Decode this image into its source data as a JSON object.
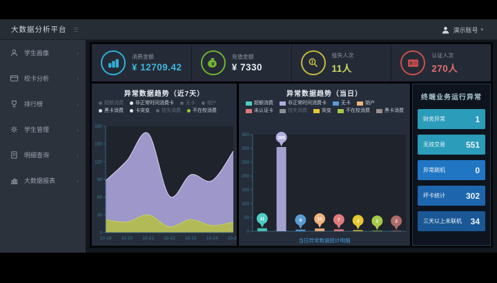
{
  "header": {
    "app_title": "大数据分析平台",
    "menu_icon": "☰",
    "user_name": "演示账号",
    "caret": "▾"
  },
  "sidebar": {
    "chevron": "›",
    "items": [
      {
        "label": "学生画像",
        "icon": "person"
      },
      {
        "label": "校卡分析",
        "icon": "card"
      },
      {
        "label": "排行榜",
        "icon": "trophy"
      },
      {
        "label": "学生管理",
        "icon": "gear"
      },
      {
        "label": "明细查询",
        "icon": "doc"
      },
      {
        "label": "大数据报表",
        "icon": "chart"
      }
    ]
  },
  "kpis": [
    {
      "label": "消费金额",
      "value": "¥ 12709.42",
      "value_color": "#41b6dc",
      "icon": "coins-stack",
      "ring_color": "#2fb3da"
    },
    {
      "label": "充值金额",
      "value": "¥ 7330",
      "value_color": "#e8edf2",
      "icon": "money-bag",
      "ring_color": "#74b42e"
    },
    {
      "label": "挂失人次",
      "value": "11人",
      "value_color": "#cfe069",
      "icon": "touch-search",
      "ring_color": "#c9bd3c"
    },
    {
      "label": "认证人次",
      "value": "270人",
      "value_color": "#e4706e",
      "icon": "id-card",
      "ring_color": "#cf4f4c"
    }
  ],
  "panel_trend7": {
    "title": "异常数据趋势（近7天）",
    "legend": [
      {
        "label": "超额消费",
        "dot": "#5a6472",
        "dim": true
      },
      {
        "label": "非正常时间消费卡",
        "dot": "#e8edf2",
        "dim": false
      },
      {
        "label": "无卡",
        "dot": "#5a6472",
        "dim": true
      },
      {
        "label": "销户",
        "dot": "#5a6472",
        "dim": true
      },
      {
        "label": "黑卡消费",
        "dot": "#e8edf2",
        "dim": false
      },
      {
        "label": "卡突变",
        "dot": "#e8edf2",
        "dim": false
      },
      {
        "label": "挂失消费",
        "dot": "#5a6472",
        "dim": true
      },
      {
        "label": "不在校消费",
        "dot": "#9acd32",
        "dim": false
      }
    ]
  },
  "panel_today": {
    "title": "异常数据趋势（当日）",
    "footer_link": "当日异常数据统计明细",
    "legend": [
      {
        "label": "超额消费",
        "color": "#4ecdc4",
        "dim": false
      },
      {
        "label": "非正常时间消费卡",
        "color": "#b3aee0",
        "dim": false
      },
      {
        "label": "无卡",
        "color": "#5b9bd5",
        "dim": false
      },
      {
        "label": "销户",
        "color": "#f2b27d",
        "dim": false
      },
      {
        "label": "未认证卡",
        "color": "#e07b7b",
        "dim": false
      },
      {
        "label": "挂失消费",
        "color": "#8a8f96",
        "dim": true
      },
      {
        "label": "突变",
        "color": "#e8c832",
        "dim": false
      },
      {
        "label": "不在校消费",
        "color": "#a8c84a",
        "dim": false
      },
      {
        "label": "黑卡消费",
        "color": "#9c8d8d",
        "dim": false
      }
    ]
  },
  "panel_terminal": {
    "title": "终端业务运行异常",
    "rows": [
      {
        "label": "财务异常",
        "value": "1",
        "bg": "#2b9cba"
      },
      {
        "label": "无效交易",
        "value": "551",
        "bg": "#2b9cba"
      },
      {
        "label": "异常刷机",
        "value": "0",
        "bg": "#2176c4"
      },
      {
        "label": "坏卡统计",
        "value": "302",
        "bg": "#1d66ad"
      },
      {
        "label": "三天以上未联机",
        "value": "34",
        "bg": "#1a5795"
      }
    ]
  },
  "chart_data": [
    {
      "type": "area",
      "title": "异常数据趋势（近7天）",
      "x": [
        "10-19",
        "10-20",
        "10-21",
        "10-22",
        "10-23",
        "10-24",
        "10-25"
      ],
      "series": [
        {
          "name": "非正常时间消费卡",
          "color": "#a8a2d8",
          "line": "#d8d4f0",
          "values": [
            88,
            122,
            168,
            62,
            98,
            88,
            138
          ]
        },
        {
          "name": "不在校消费",
          "color": "#b4bd4e",
          "line": "#c9d25e",
          "values": [
            22,
            18,
            30,
            10,
            22,
            12,
            18
          ]
        }
      ],
      "ylim": [
        0,
        180
      ],
      "yticks": [
        0,
        30,
        60,
        90,
        120,
        150,
        180
      ],
      "grid": false,
      "legend_position": "top"
    },
    {
      "type": "bar",
      "title": "异常数据趋势（当日）",
      "categories": [
        "超额消费",
        "非正常时间消费卡",
        "无卡",
        "销户",
        "未认证卡",
        "突变",
        "不在校消费",
        "黑卡消费"
      ],
      "values": [
        11,
        305,
        6,
        10,
        7,
        4,
        2,
        2
      ],
      "colors": [
        "#4ecdc4",
        "#b3aee0",
        "#5b9bd5",
        "#f2b27d",
        "#e07b7b",
        "#e8c832",
        "#a8c84a",
        "#b06a6a"
      ],
      "ylim": [
        0,
        350
      ],
      "yticks": [
        0,
        50,
        100,
        150,
        200,
        250,
        300,
        350
      ],
      "xlabel": "",
      "ylabel": ""
    }
  ]
}
